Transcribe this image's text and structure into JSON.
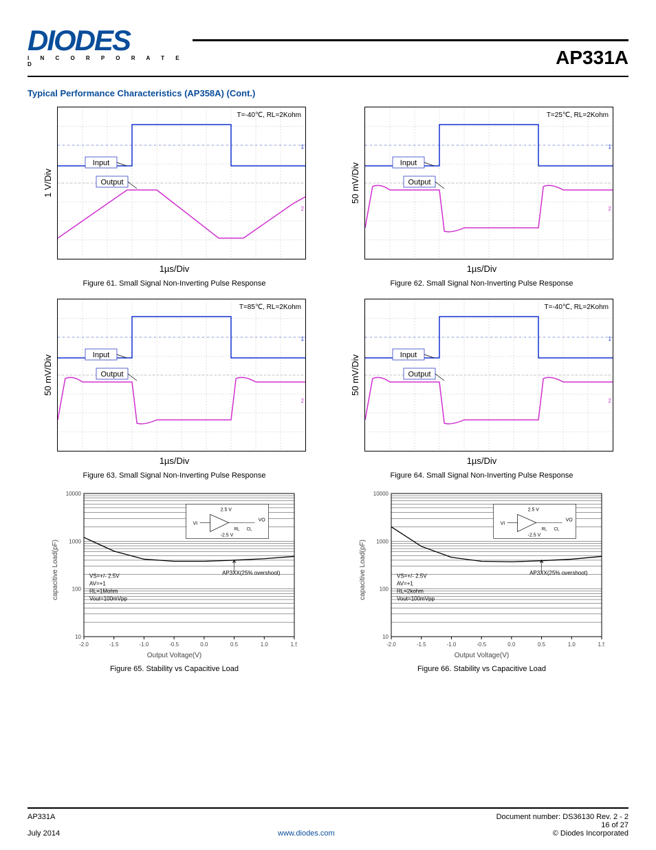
{
  "header": {
    "brand": "DIODES",
    "tagline": "I N C O R P O R A T E D",
    "product": "AP331A"
  },
  "section": {
    "title": "Typical Performance Characteristics (AP358A) (Cont.)"
  },
  "scopes": [
    {
      "cond": "T=-40℃, RL=2Kohm",
      "ylabel": "1 V/Div",
      "xlabel": "1µs/Div",
      "input_label": "Input",
      "output_label": "Output",
      "title": "Figure 61. Small Signal Non-Inverting Pulse Response",
      "type": "slew"
    },
    {
      "cond": "T=25℃, RL=2Kohm",
      "ylabel": "50 mV/Div",
      "xlabel": "1µs/Div",
      "input_label": "Input",
      "output_label": "Output",
      "title": "Figure 62. Small Signal Non-Inverting Pulse Response",
      "type": "pulse"
    },
    {
      "cond": "T=85℃, RL=2Kohm",
      "ylabel": "50 mV/Div",
      "xlabel": "1µs/Div",
      "input_label": "Input",
      "output_label": "Output",
      "title": "Figure 63. Small Signal Non-Inverting Pulse Response",
      "type": "pulse"
    },
    {
      "cond": "T=-40℃, RL=2Kohm",
      "ylabel": "50 mV/Div",
      "xlabel": "1µs/Div",
      "input_label": "Input",
      "output_label": "Output",
      "title": "Figure 64. Small Signal Non-Inverting Pulse Response",
      "type": "pulse"
    }
  ],
  "load_plots": [
    {
      "title": "Figure 65. Stability vs Capacitive Load",
      "ylabel": "capacitive Load(pF)",
      "xlabel": "Output Voltage(V)",
      "xticks": [
        "-2.0",
        "-1.5",
        "-1.0",
        "-0.5",
        "0.0",
        "0.5",
        "1.0",
        "1.5"
      ],
      "yticks": [
        "10",
        "100",
        "1000",
        "10000"
      ],
      "ylim": [
        10,
        10000
      ],
      "cond_lines": [
        "VS=+/- 2.5V",
        "AV=+1",
        "RL=1Mohm",
        "Vout=100mVpp"
      ],
      "marker": "AP3XX(25% overshoot)",
      "inset": {
        "vplus": "2.5 V",
        "vminus": "-2.5 V",
        "vi": "VI",
        "vo": "VO",
        "rl": "RL",
        "cl": "CL"
      },
      "data": [
        {
          "x": -2.0,
          "y": 1200
        },
        {
          "x": -1.5,
          "y": 620
        },
        {
          "x": -1.0,
          "y": 420
        },
        {
          "x": -0.5,
          "y": 380
        },
        {
          "x": 0.0,
          "y": 380
        },
        {
          "x": 0.5,
          "y": 400
        },
        {
          "x": 1.0,
          "y": 430
        },
        {
          "x": 1.5,
          "y": 480
        }
      ]
    },
    {
      "title": "Figure 66. Stability vs Capacitive Load",
      "ylabel": "capacitive Load(pF)",
      "xlabel": "Output Voltage(V)",
      "xticks": [
        "-2.0",
        "-1.5",
        "-1.0",
        "-0.5",
        "0.0",
        "0.5",
        "1.0",
        "1.5"
      ],
      "yticks": [
        "10",
        "100",
        "1000",
        "10000"
      ],
      "ylim": [
        10,
        10000
      ],
      "cond_lines": [
        "VS=+/- 2.5V",
        "AV=+1",
        "RL=2kohm",
        "Vout=100mVpp"
      ],
      "marker": "AP3XX(25% overshoot)",
      "inset": {
        "vplus": "2.5 V",
        "vminus": "-2.5 V",
        "vi": "VI",
        "vo": "VO",
        "rl": "RL",
        "cl": "CL"
      },
      "data": [
        {
          "x": -2.0,
          "y": 2000
        },
        {
          "x": -1.5,
          "y": 780
        },
        {
          "x": -1.0,
          "y": 460
        },
        {
          "x": -0.5,
          "y": 380
        },
        {
          "x": 0.0,
          "y": 370
        },
        {
          "x": 0.5,
          "y": 390
        },
        {
          "x": 1.0,
          "y": 420
        },
        {
          "x": 1.5,
          "y": 480
        }
      ]
    }
  ],
  "colors": {
    "input_line": "#1030d0",
    "output_line": "#d030d0",
    "grid": "#c0c0c0",
    "axis": "#000000",
    "labelbox_bg": "#ffffff",
    "labelbox_border": "#3040c0"
  },
  "footer": {
    "left": "AP331A",
    "right_line1": "Document number: DS36130 Rev. 2 - 2",
    "center": "www.diodes.com",
    "page": "16 of 27",
    "date": "July 2014",
    "copyright": "© Diodes Incorporated"
  }
}
